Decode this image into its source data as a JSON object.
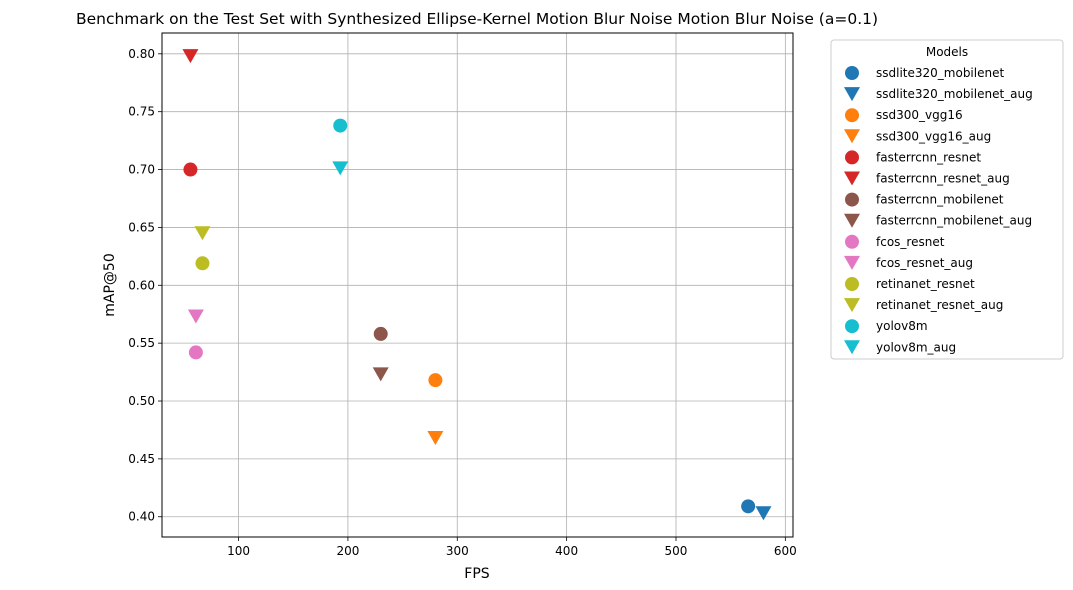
{
  "chart_data": {
    "type": "scatter",
    "title": "Benchmark on the Test Set with Synthesized Ellipse-Kernel Motion Blur Noise Motion Blur Noise (a=0.1)",
    "xlabel": "FPS",
    "ylabel": "mAP@50",
    "xlim": [
      30,
      607
    ],
    "ylim": [
      0.3825,
      0.818
    ],
    "xticks": [
      100,
      200,
      300,
      400,
      500,
      600
    ],
    "yticks": [
      0.4,
      0.45,
      0.5,
      0.55,
      0.6,
      0.65,
      0.7,
      0.75,
      0.8
    ],
    "grid": true,
    "legend": {
      "title": "Models",
      "placement": "outside-top-right"
    },
    "series": [
      {
        "name": "ssdlite320_mobilenet",
        "marker": "circle",
        "color": "#1f77b4",
        "points": [
          [
            566,
            0.409
          ]
        ]
      },
      {
        "name": "ssdlite320_mobilenet_aug",
        "marker": "triangle-down",
        "color": "#1f77b4",
        "points": [
          [
            580,
            0.403
          ]
        ]
      },
      {
        "name": "ssd300_vgg16",
        "marker": "circle",
        "color": "#ff7f0e",
        "points": [
          [
            280,
            0.518
          ]
        ]
      },
      {
        "name": "ssd300_vgg16_aug",
        "marker": "triangle-down",
        "color": "#ff7f0e",
        "points": [
          [
            280,
            0.468
          ]
        ]
      },
      {
        "name": "fasterrcnn_resnet",
        "marker": "circle",
        "color": "#d62728",
        "points": [
          [
            56,
            0.7
          ]
        ]
      },
      {
        "name": "fasterrcnn_resnet_aug",
        "marker": "triangle-down",
        "color": "#d62728",
        "points": [
          [
            56,
            0.798
          ]
        ]
      },
      {
        "name": "fasterrcnn_mobilenet",
        "marker": "circle",
        "color": "#8c564b",
        "points": [
          [
            230,
            0.558
          ]
        ]
      },
      {
        "name": "fasterrcnn_mobilenet_aug",
        "marker": "triangle-down",
        "color": "#8c564b",
        "points": [
          [
            230,
            0.523
          ]
        ]
      },
      {
        "name": "fcos_resnet",
        "marker": "circle",
        "color": "#e377c2",
        "points": [
          [
            61,
            0.542
          ]
        ]
      },
      {
        "name": "fcos_resnet_aug",
        "marker": "triangle-down",
        "color": "#e377c2",
        "points": [
          [
            61,
            0.573
          ]
        ]
      },
      {
        "name": "retinanet_resnet",
        "marker": "circle",
        "color": "#bcbd22",
        "points": [
          [
            67,
            0.619
          ]
        ]
      },
      {
        "name": "retinanet_resnet_aug",
        "marker": "triangle-down",
        "color": "#bcbd22",
        "points": [
          [
            67,
            0.645
          ]
        ]
      },
      {
        "name": "yolov8m",
        "marker": "circle",
        "color": "#17becf",
        "points": [
          [
            193,
            0.738
          ]
        ]
      },
      {
        "name": "yolov8m_aug",
        "marker": "triangle-down",
        "color": "#17becf",
        "points": [
          [
            193,
            0.701
          ]
        ]
      }
    ]
  }
}
